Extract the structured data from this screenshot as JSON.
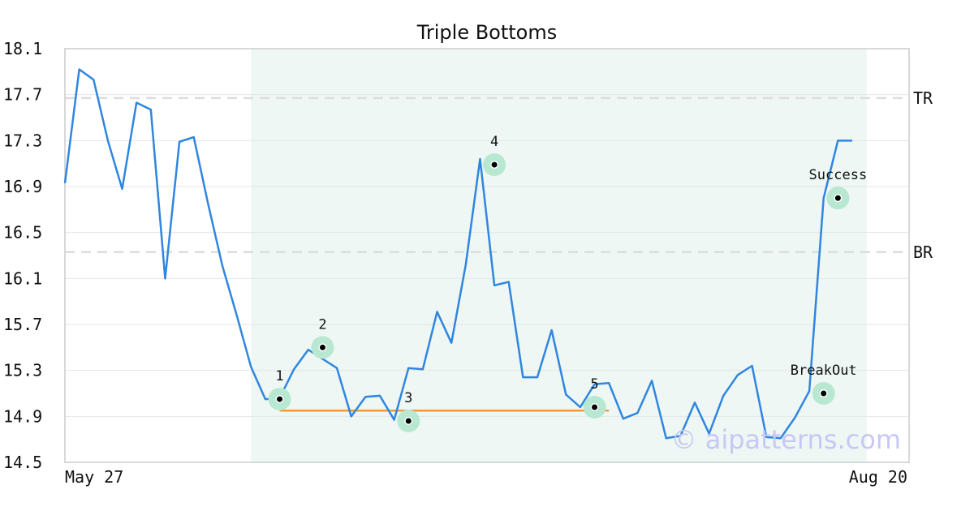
{
  "chart_data": {
    "type": "line",
    "title": "Triple Bottoms",
    "xlabel": "",
    "ylabel": "",
    "x_tick_labels": {
      "start": "May 27",
      "end": "Aug 20"
    },
    "ylim": [
      14.5,
      18.1
    ],
    "y_ticks": [
      "14.5",
      "14.9",
      "15.3",
      "15.7",
      "16.1",
      "16.5",
      "16.9",
      "17.3",
      "17.7",
      "18.1"
    ],
    "grid": true,
    "colors": {
      "line": "#2f86e0",
      "pattern_zone": "#eef7f3",
      "support": "#f29a38",
      "reference": "#dddddd",
      "marker_halo": "#b8e8d2",
      "marker_dot": "#000000"
    },
    "series": [
      {
        "values": [
          16.93,
          17.92,
          17.83,
          17.3,
          16.88,
          17.63,
          17.57,
          16.1,
          17.29,
          17.33,
          16.75,
          16.21,
          15.78,
          15.33,
          15.05,
          15.06,
          15.31,
          15.48,
          15.4,
          15.32,
          14.9,
          15.07,
          15.08,
          14.87,
          15.32,
          15.31,
          15.81,
          15.54,
          16.22,
          17.14,
          16.04,
          16.07,
          15.24,
          15.24,
          15.65,
          15.09,
          14.98,
          15.18,
          15.19,
          14.88,
          14.93,
          15.21,
          14.71,
          14.73,
          15.02,
          14.75,
          15.08,
          15.26,
          15.34,
          14.72,
          14.71,
          14.89,
          15.12,
          16.8,
          17.3,
          17.3
        ],
        "shaded_range": [
          13,
          56
        ]
      }
    ],
    "reference_lines": [
      {
        "label": "TR",
        "value": 17.67
      },
      {
        "label": "BR",
        "value": 16.33
      }
    ],
    "support_line": {
      "value": 14.95,
      "from_index": 15,
      "to_index": 38
    },
    "points": [
      {
        "label": "1",
        "index": 15,
        "value": 15.05
      },
      {
        "label": "2",
        "index": 18,
        "value": 15.5
      },
      {
        "label": "3",
        "index": 24,
        "value": 14.86
      },
      {
        "label": "4",
        "index": 30,
        "value": 17.09
      },
      {
        "label": "5",
        "index": 37,
        "value": 14.98
      },
      {
        "label": "BreakOut",
        "index": 53,
        "value": 15.1
      },
      {
        "label": "Success",
        "index": 54,
        "value": 16.8
      }
    ]
  },
  "watermark": "© aipatterns.com"
}
